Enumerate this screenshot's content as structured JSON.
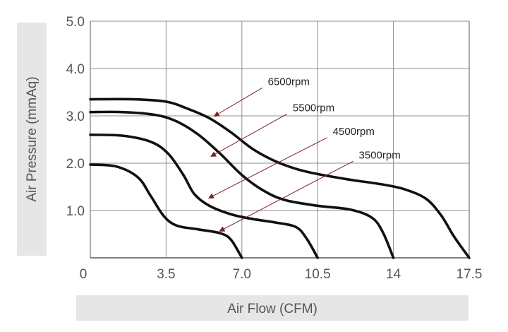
{
  "chart_data": {
    "type": "line",
    "xlabel": "Air Flow (CFM)",
    "ylabel": "Air Pressure (mmAq)",
    "xlim": [
      0,
      17.5
    ],
    "ylim": [
      0,
      5.0
    ],
    "x_tick_labels": [
      "0",
      "3.5",
      "7.0",
      "10.5",
      "14",
      "17.5"
    ],
    "y_tick_labels": [
      "1.0",
      "2.0",
      "3.0",
      "4.0",
      "5.0"
    ],
    "grid": true,
    "series": [
      {
        "name": "6500rpm",
        "points": [
          [
            0,
            3.35
          ],
          [
            2.0,
            3.35
          ],
          [
            3.5,
            3.3
          ],
          [
            4.5,
            3.15
          ],
          [
            5.5,
            2.95
          ],
          [
            6.5,
            2.65
          ],
          [
            7.5,
            2.3
          ],
          [
            8.5,
            2.05
          ],
          [
            9.5,
            1.88
          ],
          [
            10.5,
            1.77
          ],
          [
            12.0,
            1.65
          ],
          [
            13.5,
            1.55
          ],
          [
            14.5,
            1.45
          ],
          [
            15.5,
            1.25
          ],
          [
            16.2,
            0.9
          ],
          [
            16.8,
            0.45
          ],
          [
            17.5,
            0.0
          ]
        ]
      },
      {
        "name": "5500rpm",
        "points": [
          [
            0,
            3.08
          ],
          [
            1.5,
            3.08
          ],
          [
            3.0,
            3.02
          ],
          [
            4.0,
            2.88
          ],
          [
            5.0,
            2.6
          ],
          [
            6.0,
            2.2
          ],
          [
            7.0,
            1.75
          ],
          [
            8.0,
            1.42
          ],
          [
            9.0,
            1.22
          ],
          [
            10.5,
            1.1
          ],
          [
            12.0,
            1.02
          ],
          [
            13.0,
            0.85
          ],
          [
            13.5,
            0.55
          ],
          [
            14.0,
            0.0
          ]
        ]
      },
      {
        "name": "4500rpm",
        "points": [
          [
            0,
            2.6
          ],
          [
            1.5,
            2.58
          ],
          [
            2.8,
            2.45
          ],
          [
            3.6,
            2.2
          ],
          [
            4.3,
            1.75
          ],
          [
            4.8,
            1.35
          ],
          [
            5.5,
            1.1
          ],
          [
            6.5,
            0.92
          ],
          [
            7.5,
            0.82
          ],
          [
            8.5,
            0.75
          ],
          [
            9.5,
            0.65
          ],
          [
            10.0,
            0.4
          ],
          [
            10.5,
            0.0
          ]
        ]
      },
      {
        "name": "3500rpm",
        "points": [
          [
            0,
            1.97
          ],
          [
            1.2,
            1.93
          ],
          [
            2.2,
            1.7
          ],
          [
            2.8,
            1.3
          ],
          [
            3.4,
            0.88
          ],
          [
            4.0,
            0.68
          ],
          [
            5.0,
            0.6
          ],
          [
            6.0,
            0.52
          ],
          [
            6.5,
            0.38
          ],
          [
            7.0,
            0.0
          ]
        ]
      }
    ],
    "annotations": [
      {
        "text": "6500rpm",
        "series": "6500rpm",
        "text_x": 8.2,
        "text_y": 3.65,
        "arrow_x": 5.75,
        "arrow_y": 3.0
      },
      {
        "text": "5500rpm",
        "series": "5500rpm",
        "text_x": 9.35,
        "text_y": 3.1,
        "arrow_x": 5.6,
        "arrow_y": 2.15
      },
      {
        "text": "4500rpm",
        "series": "4500rpm",
        "text_x": 11.2,
        "text_y": 2.6,
        "arrow_x": 5.5,
        "arrow_y": 1.27
      },
      {
        "text": "3500rpm",
        "series": "3500rpm",
        "text_x": 12.4,
        "text_y": 2.1,
        "arrow_x": 6.0,
        "arrow_y": 0.57
      }
    ],
    "colors": {
      "curve": "#111111",
      "arrow": "#7a1f1f",
      "grid": "#8c8c8c",
      "axis_band": "#e6e6e6"
    }
  }
}
